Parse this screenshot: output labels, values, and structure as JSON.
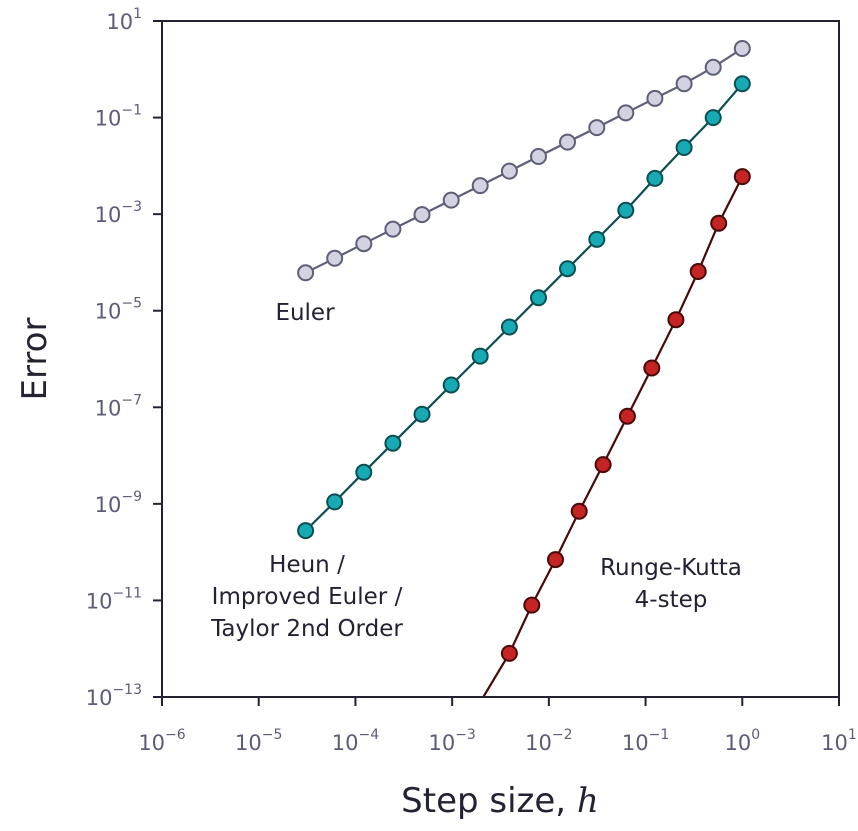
{
  "chart_data": {
    "type": "line",
    "xlabel": "Step size,",
    "xlabel_var": "h",
    "ylabel": "Error",
    "xscale": "log",
    "yscale": "log",
    "xlim": [
      1e-06,
      10
    ],
    "ylim": [
      1e-13,
      10
    ],
    "grid": false,
    "x_ticks": [
      {
        "base": "10",
        "exp": "−6"
      },
      {
        "base": "10",
        "exp": "−5"
      },
      {
        "base": "10",
        "exp": "−4"
      },
      {
        "base": "10",
        "exp": "−3"
      },
      {
        "base": "10",
        "exp": "−2"
      },
      {
        "base": "10",
        "exp": "−1"
      },
      {
        "base": "10",
        "exp": "0"
      },
      {
        "base": "10",
        "exp": "1"
      }
    ],
    "y_ticks": [
      {
        "base": "10",
        "exp": "1"
      },
      {
        "base": "10",
        "exp": "−1"
      },
      {
        "base": "10",
        "exp": "−3"
      },
      {
        "base": "10",
        "exp": "−5"
      },
      {
        "base": "10",
        "exp": "−7"
      },
      {
        "base": "10",
        "exp": "−9"
      },
      {
        "base": "10",
        "exp": "−11"
      },
      {
        "base": "10",
        "exp": "−13"
      }
    ],
    "series": [
      {
        "name": "Euler",
        "color": "#d2d2e0",
        "edge_color": "#5e5e78",
        "points": [
          {
            "x": 3.05e-05,
            "y": 6.1e-05
          },
          {
            "x": 6.1e-05,
            "y": 0.000122
          },
          {
            "x": 0.000122,
            "y": 0.000244
          },
          {
            "x": 0.000244,
            "y": 0.00049
          },
          {
            "x": 0.000488,
            "y": 0.00098
          },
          {
            "x": 0.000977,
            "y": 0.00195
          },
          {
            "x": 0.00195,
            "y": 0.0039
          },
          {
            "x": 0.00391,
            "y": 0.0078
          },
          {
            "x": 0.00781,
            "y": 0.0156
          },
          {
            "x": 0.0156,
            "y": 0.031
          },
          {
            "x": 0.0313,
            "y": 0.062
          },
          {
            "x": 0.0625,
            "y": 0.125
          },
          {
            "x": 0.125,
            "y": 0.25
          },
          {
            "x": 0.25,
            "y": 0.5
          },
          {
            "x": 0.5,
            "y": 1.1
          },
          {
            "x": 1.0,
            "y": 2.7
          }
        ]
      },
      {
        "name": "Heun / Improved Euler / Taylor 2nd Order",
        "color": "#17aab5",
        "edge_color": "#0b4f52",
        "points": [
          {
            "x": 3.05e-05,
            "y": 2.8e-10
          },
          {
            "x": 6.1e-05,
            "y": 1.1e-09
          },
          {
            "x": 0.000122,
            "y": 4.5e-09
          },
          {
            "x": 0.000244,
            "y": 1.8e-08
          },
          {
            "x": 0.000488,
            "y": 7.2e-08
          },
          {
            "x": 0.000977,
            "y": 2.9e-07
          },
          {
            "x": 0.00195,
            "y": 1.15e-06
          },
          {
            "x": 0.00391,
            "y": 4.6e-06
          },
          {
            "x": 0.00781,
            "y": 1.85e-05
          },
          {
            "x": 0.0156,
            "y": 7.4e-05
          },
          {
            "x": 0.0313,
            "y": 0.0003
          },
          {
            "x": 0.0625,
            "y": 0.0012
          },
          {
            "x": 0.125,
            "y": 0.0055
          },
          {
            "x": 0.25,
            "y": 0.024
          },
          {
            "x": 0.5,
            "y": 0.1
          },
          {
            "x": 1.0,
            "y": 0.5
          }
        ]
      },
      {
        "name": "Runge-Kutta 4-step",
        "color": "#c42424",
        "edge_color": "#4a0808",
        "points": [
          {
            "x": 0.00391,
            "y": 8e-13
          },
          {
            "x": 0.00667,
            "y": 8e-12
          },
          {
            "x": 0.0117,
            "y": 7e-11
          },
          {
            "x": 0.0206,
            "y": 7e-10
          },
          {
            "x": 0.0364,
            "y": 6.5e-09
          },
          {
            "x": 0.0649,
            "y": 6.5e-08
          },
          {
            "x": 0.116,
            "y": 6.5e-07
          },
          {
            "x": 0.206,
            "y": 6.5e-06
          },
          {
            "x": 0.35,
            "y": 6.5e-05
          },
          {
            "x": 0.571,
            "y": 0.00065
          },
          {
            "x": 1.0,
            "y": 0.006
          }
        ],
        "line_start": {
          "x": 0.0021,
          "y": 1e-13
        }
      }
    ],
    "annotations": [
      {
        "text": "Euler",
        "series": 0
      },
      {
        "lines": [
          "Heun /",
          "Improved Euler /",
          "Taylor 2nd Order"
        ],
        "series": 1
      },
      {
        "lines": [
          "Runge-Kutta",
          "4-step"
        ],
        "series": 2
      }
    ]
  }
}
